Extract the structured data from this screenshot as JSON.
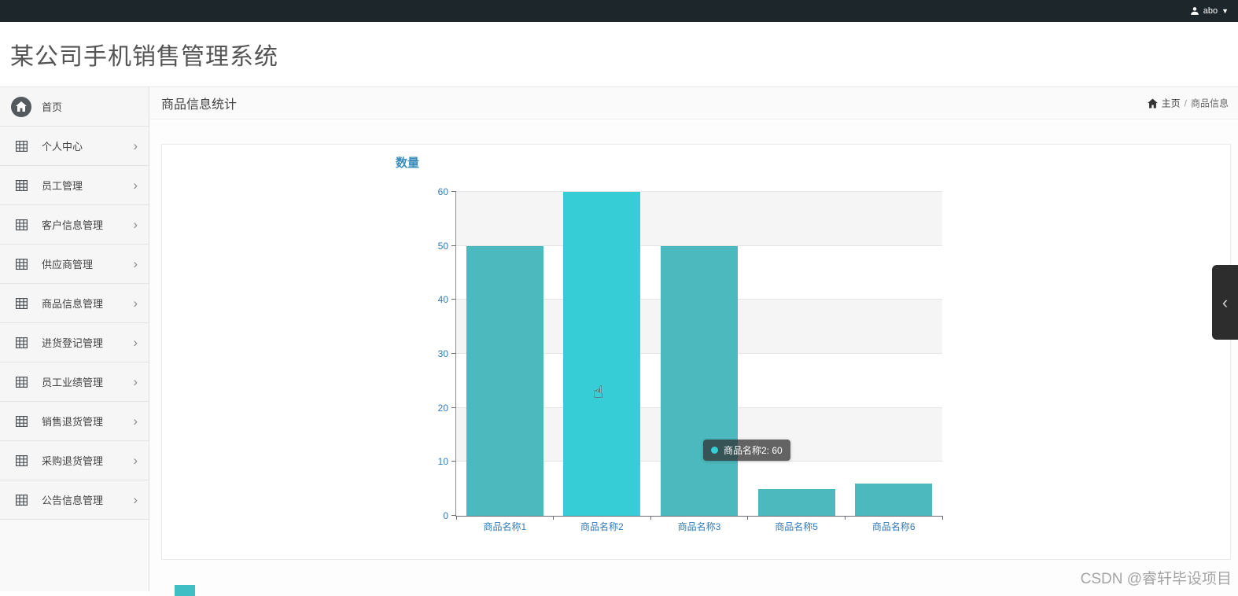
{
  "topbar": {
    "username": "abo"
  },
  "header": {
    "title": "某公司手机销售管理系统"
  },
  "sidebar": {
    "items": [
      {
        "name": "home",
        "label": "首页",
        "icon": "home-icon",
        "expandable": false
      },
      {
        "name": "profile",
        "label": "个人中心",
        "icon": "grid-icon",
        "expandable": true
      },
      {
        "name": "employee",
        "label": "员工管理",
        "icon": "grid-icon",
        "expandable": true
      },
      {
        "name": "customer-info",
        "label": "客户信息管理",
        "icon": "grid-icon",
        "expandable": true
      },
      {
        "name": "supplier",
        "label": "供应商管理",
        "icon": "grid-icon",
        "expandable": true
      },
      {
        "name": "product-info",
        "label": "商品信息管理",
        "icon": "grid-icon",
        "expandable": true
      },
      {
        "name": "purchase-register",
        "label": "进货登记管理",
        "icon": "grid-icon",
        "expandable": true
      },
      {
        "name": "employee-performance",
        "label": "员工业绩管理",
        "icon": "grid-icon",
        "expandable": true
      },
      {
        "name": "sales-return",
        "label": "销售退货管理",
        "icon": "grid-icon",
        "expandable": true
      },
      {
        "name": "purchase-return",
        "label": "采购退货管理",
        "icon": "grid-icon",
        "expandable": true
      },
      {
        "name": "notice-info",
        "label": "公告信息管理",
        "icon": "grid-icon",
        "expandable": true
      }
    ]
  },
  "breadcrumb": {
    "page_title": "商品信息统计",
    "home": "主页",
    "separator": "/",
    "current": "商品信息"
  },
  "chart_data": {
    "type": "bar",
    "title": "数量",
    "categories": [
      "商品名称1",
      "商品名称2",
      "商品名称3",
      "商品名称5",
      "商品名称6"
    ],
    "values": [
      50,
      60,
      50,
      5,
      6
    ],
    "xlabel": "",
    "ylabel": "数量",
    "ylim": [
      0,
      60
    ],
    "yticks": [
      0,
      10,
      20,
      30,
      40,
      50,
      60
    ],
    "grid": true,
    "legend_position": "none",
    "bar_color": "#4cb9be",
    "highlight_color": "#36cdd6",
    "highlight_index": 1,
    "tooltip": {
      "category": "商品名称2",
      "value": 60,
      "text": "商品名称2: 60"
    }
  },
  "watermark": "CSDN @睿轩毕设项目"
}
